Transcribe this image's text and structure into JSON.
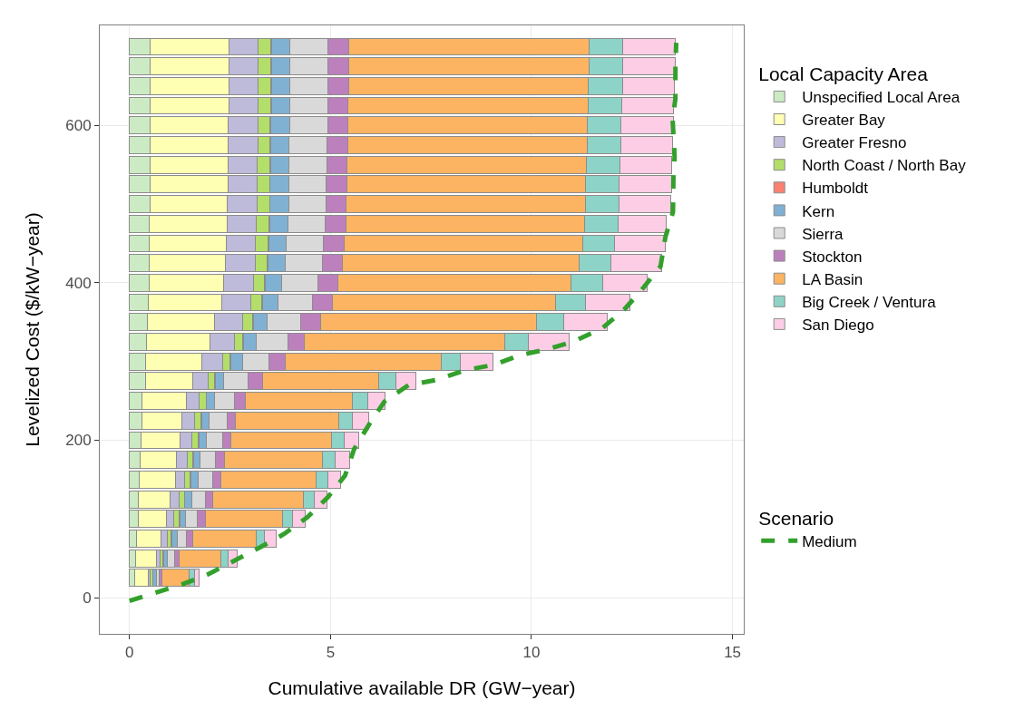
{
  "chart_data": {
    "type": "bar",
    "orientation": "horizontal",
    "stacked": true,
    "xlabel": "Cumulative available DR (GW−year)",
    "ylabel": "Levelized Cost ($/kW−year)",
    "legend_title": "Local Capacity Area",
    "annotations": [
      "Scenario"
    ],
    "legend": "right",
    "grid": true,
    "x": [
      25,
      50,
      75,
      100,
      125,
      150,
      175,
      200,
      225,
      250,
      275,
      300,
      325,
      350,
      375,
      400,
      425,
      450,
      475,
      500,
      525,
      550,
      575,
      600,
      625,
      650,
      675,
      700
    ],
    "xlim": [
      -0.74,
      15.28
    ],
    "xticks": [
      0,
      5,
      10,
      15
    ],
    "ylim": [
      -46,
      727
    ],
    "yticks": [
      0,
      200,
      400,
      600
    ],
    "series": [
      {
        "name": "Unspecified Local Area",
        "color": "#ccebc5",
        "values": [
          0.12,
          0.16,
          0.18,
          0.21,
          0.23,
          0.25,
          0.27,
          0.28,
          0.3,
          0.32,
          0.39,
          0.41,
          0.43,
          0.45,
          0.46,
          0.48,
          0.5,
          0.5,
          0.5,
          0.51,
          0.51,
          0.51,
          0.51,
          0.51,
          0.52,
          0.52,
          0.52,
          0.52
        ]
      },
      {
        "name": "Greater Bay",
        "color": "#ffffb3",
        "values": [
          0.34,
          0.5,
          0.6,
          0.7,
          0.78,
          0.89,
          0.9,
          0.97,
          1.01,
          1.09,
          1.18,
          1.38,
          1.57,
          1.66,
          1.83,
          1.85,
          1.88,
          1.9,
          1.93,
          1.93,
          1.94,
          1.94,
          1.95,
          1.95,
          1.95,
          1.95,
          1.95,
          1.95
        ]
      },
      {
        "name": "Greater Fresno",
        "color": "#bebada",
        "values": [
          0.05,
          0.1,
          0.17,
          0.2,
          0.22,
          0.24,
          0.27,
          0.3,
          0.3,
          0.33,
          0.38,
          0.52,
          0.61,
          0.7,
          0.72,
          0.75,
          0.74,
          0.73,
          0.72,
          0.74,
          0.73,
          0.73,
          0.73,
          0.73,
          0.73,
          0.73,
          0.73,
          0.73
        ]
      },
      {
        "name": "North Coast / North Bay",
        "color": "#b3de69",
        "values": [
          0.06,
          0.07,
          0.09,
          0.12,
          0.13,
          0.13,
          0.13,
          0.15,
          0.17,
          0.16,
          0.16,
          0.18,
          0.2,
          0.25,
          0.28,
          0.28,
          0.3,
          0.32,
          0.32,
          0.3,
          0.3,
          0.31,
          0.31,
          0.31,
          0.31,
          0.32,
          0.32,
          0.32
        ]
      },
      {
        "name": "Humboldt",
        "color": "#fb8072",
        "values": [
          0.02,
          0.02,
          0.02,
          0.02,
          0.02,
          0.02,
          0.02,
          0.02,
          0.02,
          0.02,
          0.02,
          0.02,
          0.02,
          0.02,
          0.02,
          0.02,
          0.02,
          0.02,
          0.02,
          0.02,
          0.02,
          0.02,
          0.02,
          0.02,
          0.02,
          0.02,
          0.02,
          0.02
        ]
      },
      {
        "name": "Kern",
        "color": "#80b1d3",
        "values": [
          0.09,
          0.1,
          0.14,
          0.15,
          0.17,
          0.17,
          0.17,
          0.18,
          0.18,
          0.2,
          0.22,
          0.3,
          0.32,
          0.34,
          0.38,
          0.4,
          0.43,
          0.43,
          0.45,
          0.46,
          0.46,
          0.46,
          0.45,
          0.46,
          0.45,
          0.45,
          0.45,
          0.45
        ]
      },
      {
        "name": "Sierra",
        "color": "#d9d9d9",
        "values": [
          0.06,
          0.17,
          0.21,
          0.29,
          0.34,
          0.36,
          0.38,
          0.41,
          0.44,
          0.49,
          0.6,
          0.66,
          0.79,
          0.84,
          0.86,
          0.91,
          0.93,
          0.92,
          0.93,
          0.94,
          0.94,
          0.94,
          0.95,
          0.95,
          0.95,
          0.95,
          0.95,
          0.95
        ]
      },
      {
        "name": "Stockton",
        "color": "#bc80bd",
        "values": [
          0.07,
          0.11,
          0.16,
          0.19,
          0.19,
          0.21,
          0.22,
          0.21,
          0.21,
          0.27,
          0.35,
          0.4,
          0.41,
          0.49,
          0.5,
          0.5,
          0.49,
          0.53,
          0.51,
          0.49,
          0.5,
          0.5,
          0.5,
          0.5,
          0.51,
          0.51,
          0.52,
          0.52
        ]
      },
      {
        "name": "LA Basin",
        "color": "#fdb462",
        "values": [
          0.68,
          1.05,
          1.58,
          1.93,
          2.24,
          2.37,
          2.45,
          2.51,
          2.58,
          2.67,
          2.9,
          3.88,
          4.98,
          5.37,
          5.55,
          5.79,
          5.89,
          5.92,
          5.93,
          5.95,
          5.95,
          5.95,
          5.96,
          5.96,
          5.96,
          5.97,
          5.97,
          5.97
        ]
      },
      {
        "name": "Big Creek / Ventura",
        "color": "#8dd3c7",
        "values": [
          0.12,
          0.17,
          0.21,
          0.24,
          0.27,
          0.29,
          0.3,
          0.31,
          0.34,
          0.38,
          0.42,
          0.49,
          0.59,
          0.68,
          0.74,
          0.78,
          0.79,
          0.79,
          0.84,
          0.83,
          0.83,
          0.84,
          0.84,
          0.84,
          0.84,
          0.84,
          0.84,
          0.84
        ]
      },
      {
        "name": "San Diego",
        "color": "#fccde5",
        "values": [
          0.11,
          0.22,
          0.28,
          0.31,
          0.33,
          0.33,
          0.36,
          0.36,
          0.41,
          0.43,
          0.51,
          0.79,
          1.01,
          1.08,
          1.1,
          1.12,
          1.27,
          1.27,
          1.21,
          1.3,
          1.3,
          1.29,
          1.29,
          1.29,
          1.28,
          1.3,
          1.31,
          1.31
        ]
      },
      {
        "name": "Medium",
        "type": "line",
        "line_style": "dashed",
        "color": "#33a02c",
        "values": [
          0,
          1.37,
          1.97,
          2.61,
          3.25,
          3.85,
          4.42,
          4.94,
          5.36,
          5.59,
          5.96,
          6.34,
          6.94,
          7.67,
          8.35,
          9.08,
          9.71,
          10.43,
          11.07,
          11.75,
          12.29,
          12.74,
          13.21,
          13.33,
          13.52,
          13.53,
          13.56,
          13.51,
          13.58,
          13.58,
          13.6
        ],
        "x": [
          -4,
          18,
          30,
          47,
          64,
          81,
          102,
          128,
          155,
          189,
          220,
          249,
          270,
          277,
          289,
          296,
          308,
          316,
          326,
          342,
          365,
          391,
          421,
          458,
          490,
          534,
          560,
          608,
          634,
          673,
          705
        ]
      }
    ]
  }
}
